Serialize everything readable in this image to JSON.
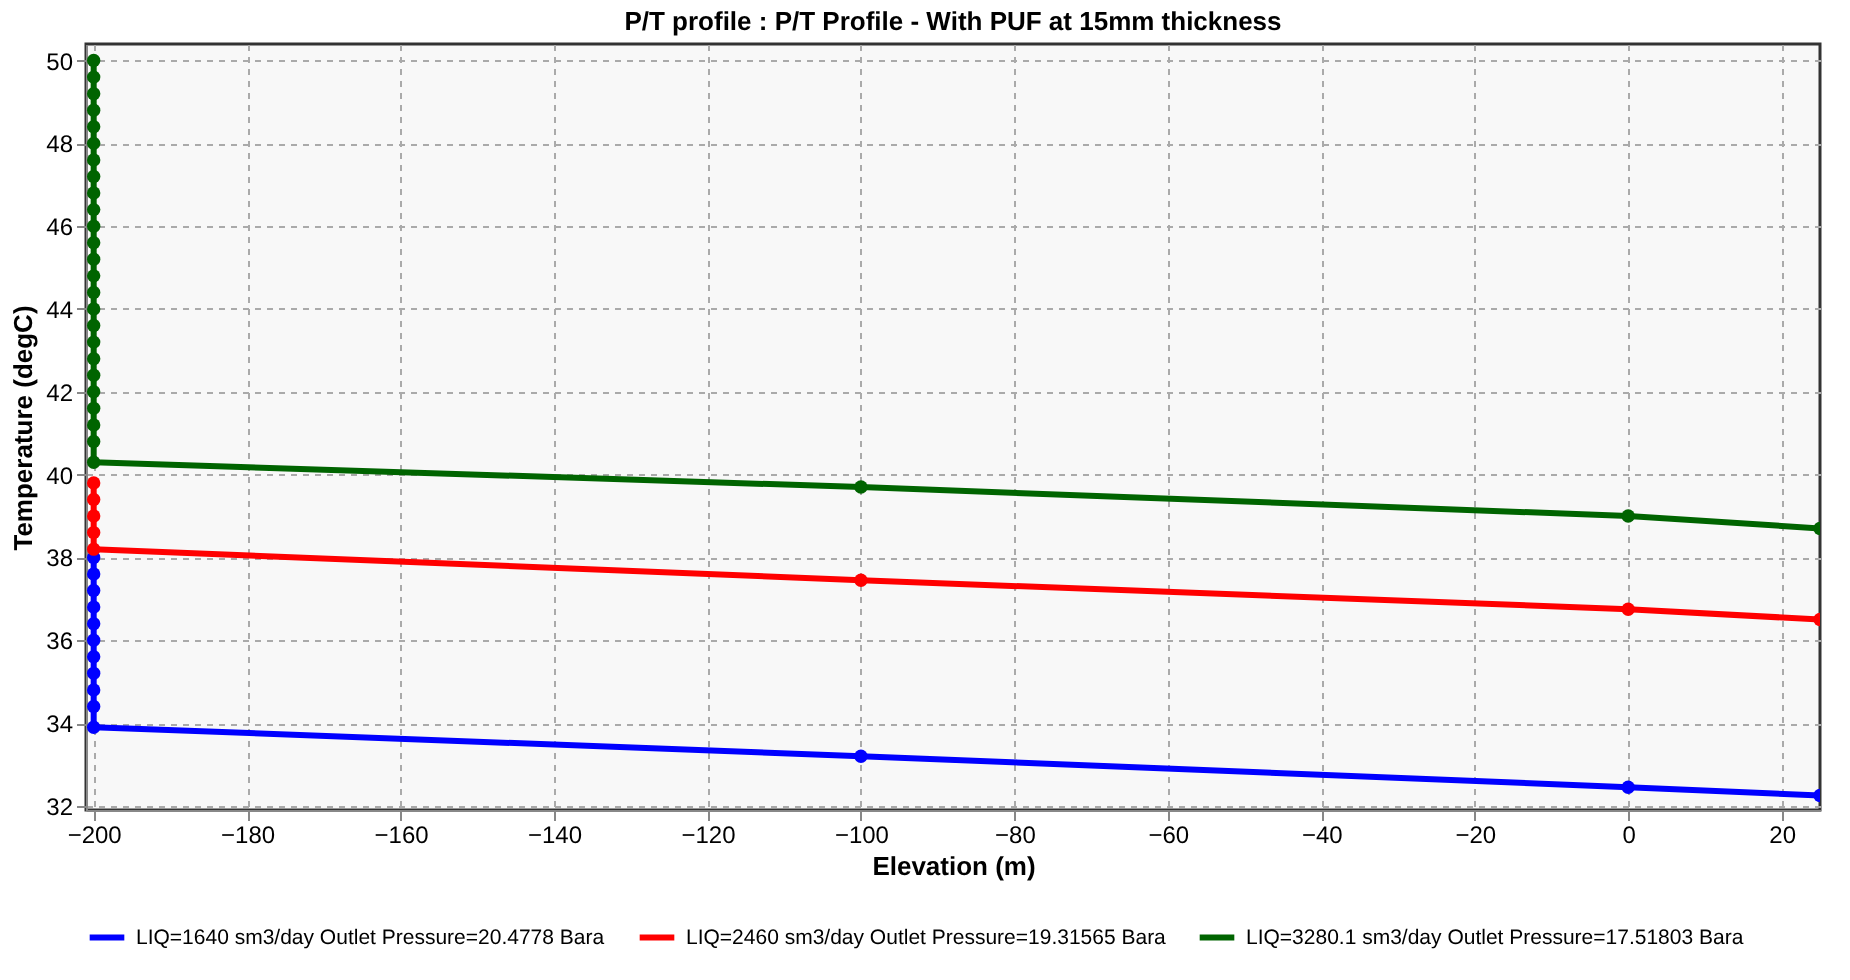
{
  "chart_data": {
    "type": "line",
    "title": "P/T profile : P/T Profile - With PUF at 15mm thickness",
    "xlabel": "Elevation (m)",
    "ylabel": "Temperature (degC)",
    "xlim": [
      -201,
      25
    ],
    "xticks": [
      -200,
      -180,
      -160,
      -140,
      -120,
      -100,
      -80,
      -60,
      -40,
      -20,
      0,
      20
    ],
    "ylim": [
      31.9,
      50.4
    ],
    "yticks": [
      32,
      34,
      36,
      38,
      40,
      42,
      44,
      46,
      48,
      50
    ],
    "grid": true,
    "legend": "bottom",
    "marker": "circle",
    "line_style": "solid",
    "series": [
      {
        "name": "LIQ=1640 sm3/day Outlet Pressure=20.4778 Bara",
        "color": "#0000ff",
        "x": [
          -200,
          -200,
          -200,
          -200,
          -200,
          -200,
          -200,
          -200,
          -200,
          -200,
          -200,
          -100,
          0,
          25
        ],
        "values": [
          38.0,
          37.6,
          37.2,
          36.8,
          36.4,
          36.0,
          35.6,
          35.2,
          34.8,
          34.4,
          33.9,
          33.2,
          32.45,
          32.25
        ]
      },
      {
        "name": "LIQ=2460 sm3/day Outlet Pressure=19.31565 Bara",
        "color": "#ff0000",
        "x": [
          -200,
          -200,
          -200,
          -200,
          -200,
          -100,
          0,
          25
        ],
        "values": [
          39.8,
          39.4,
          39.0,
          38.6,
          38.2,
          37.45,
          36.75,
          36.5
        ]
      },
      {
        "name": "LIQ=3280.1 sm3/day Outlet Pressure=17.51803 Bara",
        "color": "#006400",
        "x": [
          -200,
          -200,
          -200,
          -200,
          -200,
          -200,
          -200,
          -200,
          -200,
          -200,
          -200,
          -200,
          -200,
          -200,
          -200,
          -200,
          -200,
          -200,
          -200,
          -200,
          -200,
          -200,
          -200,
          -200,
          -200,
          -100,
          0,
          25
        ],
        "values": [
          50.0,
          49.6,
          49.2,
          48.8,
          48.4,
          48.0,
          47.6,
          47.2,
          46.8,
          46.4,
          46.0,
          45.6,
          45.2,
          44.8,
          44.4,
          44.0,
          43.6,
          43.2,
          42.8,
          42.4,
          42.0,
          41.6,
          41.2,
          40.8,
          40.3,
          39.7,
          39.0,
          38.7
        ]
      }
    ]
  }
}
